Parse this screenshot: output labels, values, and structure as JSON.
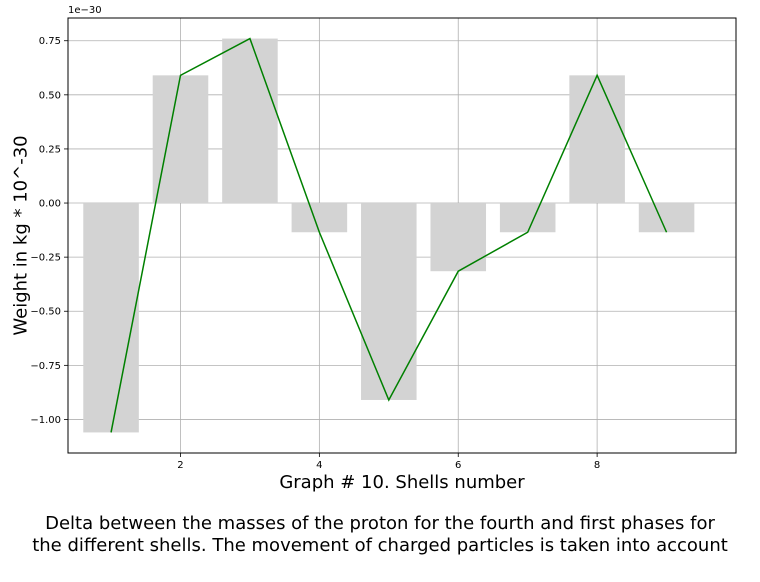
{
  "chart_data": {
    "type": "bar",
    "x": [
      1,
      2,
      3,
      4,
      5,
      6,
      7,
      8,
      9
    ],
    "series": [
      {
        "kind": "bar",
        "values": [
          -1.06,
          0.59,
          0.76,
          -0.135,
          -0.91,
          -0.315,
          -0.135,
          0.59,
          -0.135
        ],
        "color": "#d3d3d3"
      },
      {
        "kind": "line",
        "values": [
          -1.06,
          0.59,
          0.76,
          -0.135,
          -0.91,
          -0.315,
          -0.135,
          0.59,
          -0.135
        ],
        "color": "#008000"
      }
    ],
    "xlim": [
      0.38,
      10.0
    ],
    "ylim": [
      -1.155,
      0.855
    ],
    "xticks": [
      2,
      4,
      6,
      8
    ],
    "yticks": [
      -1.0,
      -0.75,
      -0.5,
      -0.25,
      0.0,
      0.25,
      0.5,
      0.75
    ],
    "ytick_labels": [
      "−1.00",
      "−0.75",
      "−0.50",
      "−0.25",
      "0.00",
      "0.25",
      "0.50",
      "0.75"
    ],
    "y_offset_text": "1e−30",
    "xlabel": "Graph # 10. Shells number",
    "ylabel": "Weight in kg * 10^-30",
    "grid": true,
    "legend": "none"
  },
  "caption": {
    "line1": "Delta between the masses of the proton for the fourth and first phases for",
    "line2": "the different shells. The movement of charged particles is taken into account"
  }
}
